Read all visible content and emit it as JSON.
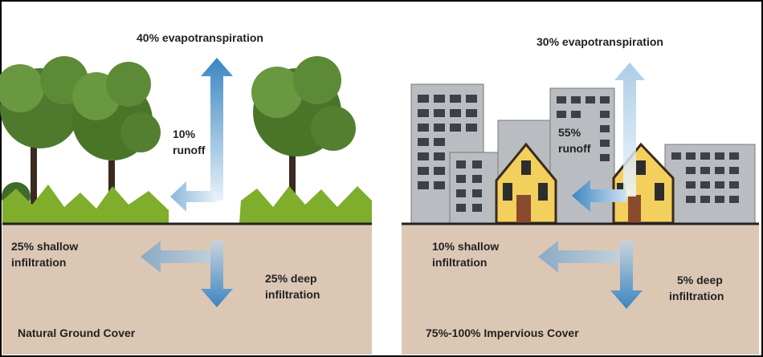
{
  "panels": [
    {
      "evapotranspiration": "40% evapotranspiration",
      "runoff": [
        "10%",
        "runoff"
      ],
      "shallow_infiltration": [
        "25% shallow",
        "infiltration"
      ],
      "deep_infiltration": [
        "25% deep",
        "infiltration"
      ],
      "cover": "Natural Ground Cover"
    },
    {
      "evapotranspiration": "30% evapotranspiration",
      "runoff": [
        "55%",
        "runoff"
      ],
      "shallow_infiltration": [
        "10% shallow",
        "infiltration"
      ],
      "deep_infiltration": [
        "5% deep",
        "infiltration"
      ],
      "cover": "75%-100% Impervious Cover"
    }
  ]
}
